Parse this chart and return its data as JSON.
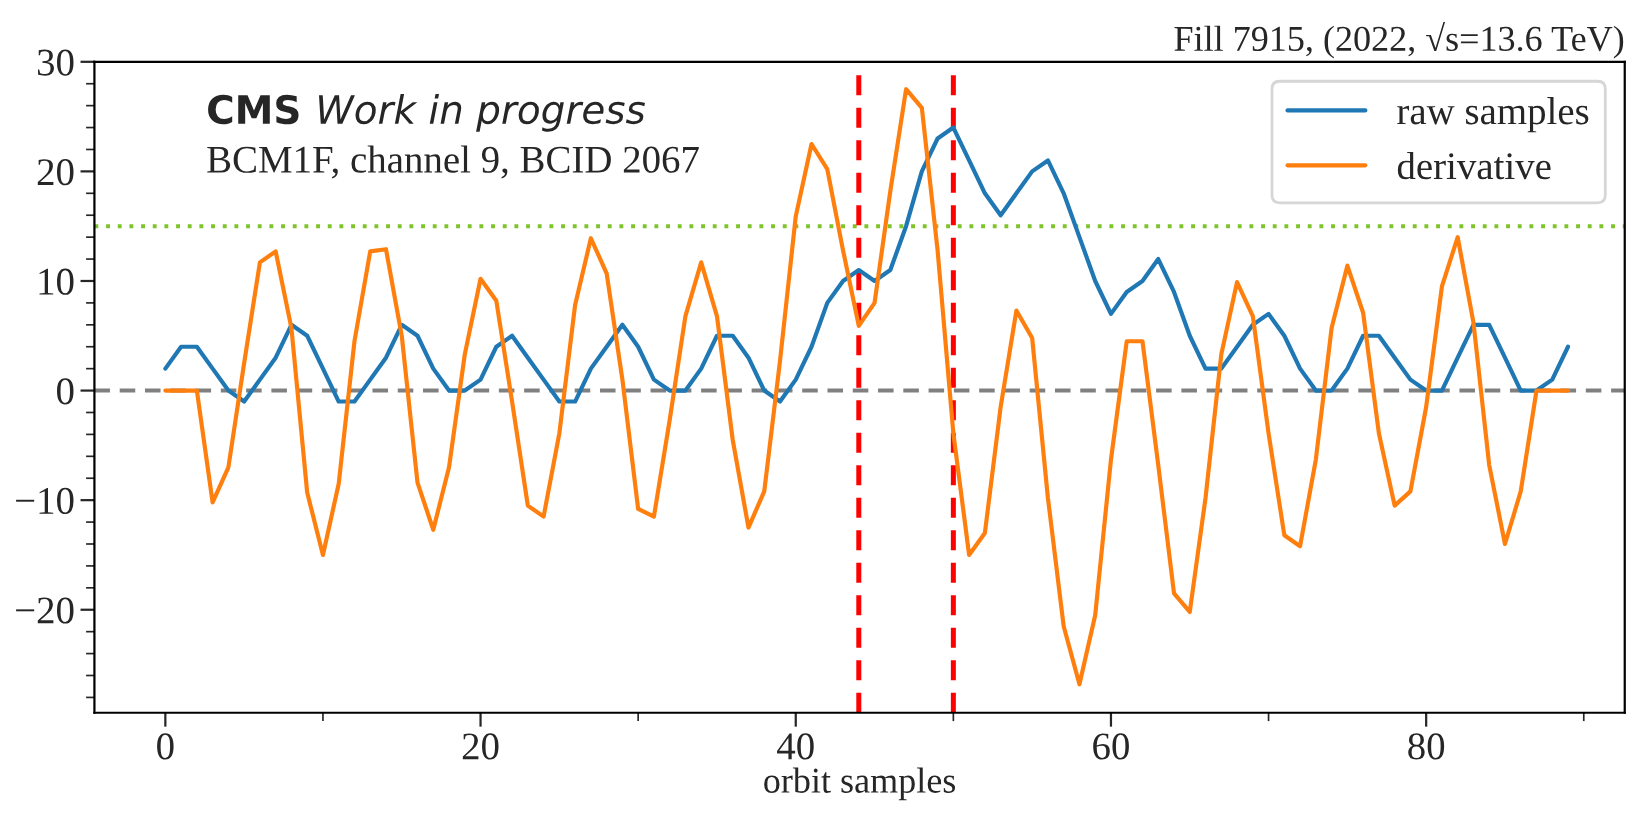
{
  "chart_data": {
    "type": "line",
    "title": "Fill 7915, (2022, √s=13.6 TeV)",
    "xlabel": "orbit samples",
    "annotations": [
      "CMS",
      "Work in progress",
      "BCM1F, channel 9, BCID 2067"
    ],
    "x": [
      0,
      1,
      2,
      3,
      4,
      5,
      6,
      7,
      8,
      9,
      10,
      11,
      12,
      13,
      14,
      15,
      16,
      17,
      18,
      19,
      20,
      21,
      22,
      23,
      24,
      25,
      26,
      27,
      28,
      29,
      30,
      31,
      32,
      33,
      34,
      35,
      36,
      37,
      38,
      39,
      40,
      41,
      42,
      43,
      44,
      45,
      46,
      47,
      48,
      49,
      50,
      51,
      52,
      53,
      54,
      55,
      56,
      57,
      58,
      59,
      60,
      61,
      62,
      63,
      64,
      65,
      66,
      67,
      68,
      69,
      70,
      71,
      72,
      73,
      74,
      75,
      76,
      77,
      78,
      79,
      80,
      81,
      82,
      83,
      84,
      85,
      86,
      87,
      88,
      89
    ],
    "series": [
      {
        "name": "raw samples",
        "color": "#1f77b4",
        "values": [
          2,
          4,
          4,
          2,
          0,
          -1,
          1,
          3,
          6,
          5,
          2,
          -1,
          -1,
          1,
          3,
          6,
          5,
          2,
          0,
          0,
          1,
          4,
          5,
          3,
          1,
          -1,
          -1,
          2,
          4,
          6,
          4,
          1,
          0,
          0,
          2,
          5,
          5,
          3,
          0,
          -1,
          1,
          4,
          8,
          10,
          11,
          10,
          11,
          15,
          20,
          23,
          24,
          21,
          18,
          16,
          18,
          20,
          21,
          18,
          14,
          10,
          7,
          9,
          10,
          12,
          9,
          5,
          2,
          2,
          4,
          6,
          7,
          5,
          2,
          0,
          0,
          2,
          5,
          5,
          3,
          1,
          0,
          0,
          3,
          6,
          6,
          3,
          0,
          0,
          1,
          4
        ]
      },
      {
        "name": "derivative",
        "color": "#ff7f0e",
        "values": [
          0,
          0,
          0,
          -10.2,
          -7,
          2.5,
          11.7,
          12.7,
          5.7,
          -9.3,
          -15,
          -8.5,
          4.5,
          12.7,
          12.9,
          5,
          -8.4,
          -12.7,
          -7,
          3.3,
          10.2,
          8.2,
          -1,
          -10.5,
          -11.5,
          -3.9,
          7.8,
          13.9,
          10.7,
          1,
          -10.8,
          -11.5,
          -2.7,
          6.8,
          11.7,
          6.8,
          -4.5,
          -12.5,
          -9.2,
          2.7,
          15.9,
          22.5,
          20.2,
          12.8,
          5.9,
          8,
          18.2,
          27.5,
          25.8,
          12.8,
          -3.9,
          -15,
          -13,
          -1.5,
          7.3,
          4.8,
          -9.8,
          -21.5,
          -26.8,
          -20.5,
          -6.3,
          4.5,
          4.5,
          -6.8,
          -18.5,
          -20.2,
          -9.8,
          3.3,
          9.9,
          6.8,
          -3.9,
          -13.2,
          -14.2,
          -6.3,
          5.7,
          11.4,
          7.1,
          -3.9,
          -10.5,
          -9.2,
          -1.5,
          9.5,
          14,
          6.2,
          -6.8,
          -14,
          -9.2,
          0,
          0,
          0
        ]
      }
    ],
    "ref_lines": [
      {
        "axis": "y",
        "value": 0,
        "color": "#808080",
        "line_style": "dashed"
      },
      {
        "axis": "y",
        "value": 15,
        "color": "#7ec42a",
        "line_style": "dotted"
      },
      {
        "axis": "x",
        "value": 44,
        "color": "#ff0000",
        "line_style": "dashed"
      },
      {
        "axis": "x",
        "value": 50,
        "color": "#ff0000",
        "line_style": "dashed"
      }
    ],
    "xlim": [
      -4.5,
      92.6
    ],
    "ylim": [
      -29.4,
      30
    ],
    "xticks": [
      0,
      {
        "value": 10,
        "label": null
      },
      20,
      {
        "value": 30,
        "label": null
      },
      40,
      {
        "value": 50,
        "label": null
      },
      60,
      {
        "value": 70,
        "label": null
      },
      80,
      {
        "value": 90,
        "label": null
      }
    ],
    "yticks": [
      {
        "value": -28,
        "label": null
      },
      {
        "value": -26,
        "label": null
      },
      {
        "value": -24,
        "label": null
      },
      {
        "value": -22,
        "label": null
      },
      {
        "value": -20,
        "label": "−20"
      },
      {
        "value": -18,
        "label": null
      },
      {
        "value": -16,
        "label": null
      },
      {
        "value": -14,
        "label": null
      },
      {
        "value": -12,
        "label": null
      },
      {
        "value": -10,
        "label": "−10"
      },
      {
        "value": -8,
        "label": null
      },
      {
        "value": -6,
        "label": null
      },
      {
        "value": -4,
        "label": null
      },
      {
        "value": -2,
        "label": null
      },
      0,
      {
        "value": 2,
        "label": null
      },
      {
        "value": 4,
        "label": null
      },
      {
        "value": 6,
        "label": null
      },
      {
        "value": 8,
        "label": null
      },
      10,
      {
        "value": 12,
        "label": null
      },
      {
        "value": 14,
        "label": null
      },
      {
        "value": 16,
        "label": null
      },
      {
        "value": 18,
        "label": null
      },
      20,
      {
        "value": 22,
        "label": null
      },
      {
        "value": 24,
        "label": null
      },
      {
        "value": 26,
        "label": null
      },
      {
        "value": 28,
        "label": null
      },
      30
    ],
    "grid": false,
    "legend": "top right",
    "marker": "none",
    "line_style": "solid"
  }
}
